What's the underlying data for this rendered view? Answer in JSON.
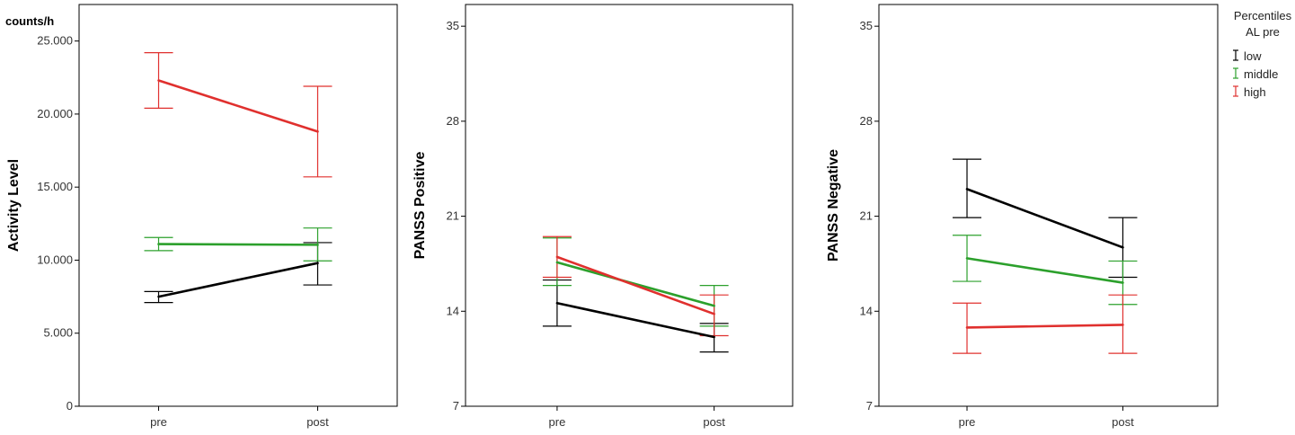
{
  "legend": {
    "title_line1": "Percentiles",
    "title_line2": "AL pre",
    "items": [
      {
        "label": "low",
        "color": "#000000"
      },
      {
        "label": "middle",
        "color": "#2ca02c"
      },
      {
        "label": "high",
        "color": "#e0302e"
      }
    ]
  },
  "chart_data": [
    {
      "type": "line",
      "x": [
        "pre",
        "post"
      ],
      "ylabel": "Activity Level",
      "unit_label": "counts/h",
      "ylim": [
        0,
        27500
      ],
      "yticks": [
        0,
        5000,
        10000,
        15000,
        20000,
        25000
      ],
      "ytick_labels": [
        "0",
        "5.000",
        "10.000",
        "15.000",
        "20.000",
        "25.000"
      ],
      "series": [
        {
          "name": "low",
          "color": "#000000",
          "values": [
            7500,
            9800
          ],
          "ci_low": [
            7100,
            8300
          ],
          "ci_high": [
            7850,
            11200
          ]
        },
        {
          "name": "middle",
          "color": "#2ca02c",
          "values": [
            11100,
            11050
          ],
          "ci_low": [
            10650,
            9950
          ],
          "ci_high": [
            11550,
            12200
          ]
        },
        {
          "name": "high",
          "color": "#e0302e",
          "values": [
            22300,
            18800
          ],
          "ci_low": [
            20400,
            15700
          ],
          "ci_high": [
            24200,
            21900
          ]
        }
      ]
    },
    {
      "type": "line",
      "x": [
        "pre",
        "post"
      ],
      "ylabel": "PANSS Positive",
      "ylim": [
        7,
        36.6
      ],
      "yticks": [
        7,
        14,
        21,
        28,
        35
      ],
      "ytick_labels": [
        "7",
        "14",
        "21",
        "28",
        "35"
      ],
      "series": [
        {
          "name": "low",
          "color": "#000000",
          "values": [
            14.6,
            12.1
          ],
          "ci_low": [
            12.9,
            11.0
          ],
          "ci_high": [
            16.3,
            13.1
          ]
        },
        {
          "name": "middle",
          "color": "#2ca02c",
          "values": [
            17.6,
            14.4
          ],
          "ci_low": [
            15.9,
            12.9
          ],
          "ci_high": [
            19.4,
            15.9
          ]
        },
        {
          "name": "high",
          "color": "#e0302e",
          "values": [
            18.0,
            13.8
          ],
          "ci_low": [
            16.5,
            12.2
          ],
          "ci_high": [
            19.5,
            15.2
          ]
        }
      ]
    },
    {
      "type": "line",
      "x": [
        "pre",
        "post"
      ],
      "ylabel": "PANSS Negative",
      "ylim": [
        7,
        36.6
      ],
      "yticks": [
        7,
        14,
        21,
        28,
        35
      ],
      "ytick_labels": [
        "7",
        "14",
        "21",
        "28",
        "35"
      ],
      "series": [
        {
          "name": "low",
          "color": "#000000",
          "values": [
            23.0,
            18.7
          ],
          "ci_low": [
            20.9,
            16.5
          ],
          "ci_high": [
            25.2,
            20.9
          ]
        },
        {
          "name": "middle",
          "color": "#2ca02c",
          "values": [
            17.9,
            16.1
          ],
          "ci_low": [
            16.2,
            14.5
          ],
          "ci_high": [
            19.6,
            17.7
          ]
        },
        {
          "name": "high",
          "color": "#e0302e",
          "values": [
            12.8,
            13.0
          ],
          "ci_low": [
            10.9,
            10.9
          ],
          "ci_high": [
            14.6,
            15.2
          ]
        }
      ]
    }
  ]
}
